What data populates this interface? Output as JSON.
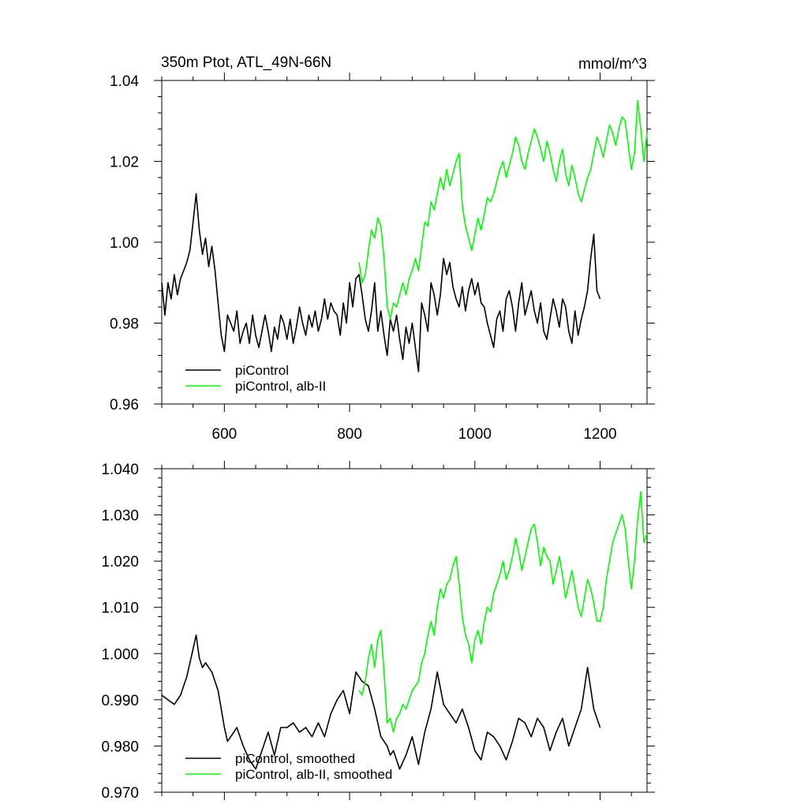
{
  "chart_data": [
    {
      "type": "line",
      "title": "350m Ptot, ATL_49N-66N",
      "units": "mmol/m^3",
      "xlim": [
        500,
        1275
      ],
      "ylim": [
        0.96,
        1.04
      ],
      "x_ticks": [
        600,
        800,
        1000,
        1200
      ],
      "x_tick_labels": [
        "600",
        "800",
        "1000",
        "1200"
      ],
      "y_ticks": [
        0.96,
        0.98,
        1.0,
        1.02,
        1.04
      ],
      "y_tick_labels": [
        "0.96",
        "0.98",
        "1.00",
        "1.02",
        "1.04"
      ],
      "legend_position": "bottom-left",
      "grid": false,
      "series": [
        {
          "name": "piControl",
          "color": "#000000",
          "x": [
            500,
            505,
            510,
            515,
            520,
            525,
            530,
            535,
            540,
            545,
            550,
            555,
            560,
            565,
            570,
            575,
            580,
            585,
            590,
            595,
            600,
            605,
            610,
            615,
            620,
            625,
            630,
            635,
            640,
            645,
            650,
            655,
            660,
            665,
            670,
            675,
            680,
            685,
            690,
            695,
            700,
            705,
            710,
            715,
            720,
            725,
            730,
            735,
            740,
            745,
            750,
            755,
            760,
            765,
            770,
            775,
            780,
            785,
            790,
            795,
            800,
            805,
            810,
            815,
            820,
            825,
            830,
            835,
            840,
            845,
            850,
            855,
            860,
            865,
            870,
            875,
            880,
            885,
            890,
            895,
            900,
            905,
            910,
            915,
            920,
            925,
            930,
            935,
            940,
            945,
            950,
            955,
            960,
            965,
            970,
            975,
            980,
            985,
            990,
            995,
            1000,
            1005,
            1010,
            1015,
            1020,
            1025,
            1030,
            1035,
            1040,
            1045,
            1050,
            1055,
            1060,
            1065,
            1070,
            1075,
            1080,
            1085,
            1090,
            1095,
            1100,
            1105,
            1110,
            1115,
            1120,
            1125,
            1130,
            1135,
            1140,
            1145,
            1150,
            1155,
            1160,
            1165,
            1170,
            1175,
            1180,
            1185,
            1190,
            1195,
            1200
          ],
          "y": [
            0.99,
            0.982,
            0.99,
            0.986,
            0.992,
            0.987,
            0.991,
            0.993,
            0.995,
            0.998,
            1.005,
            1.012,
            1.003,
            0.997,
            1.001,
            0.994,
            0.999,
            0.993,
            0.985,
            0.977,
            0.973,
            0.982,
            0.98,
            0.978,
            0.983,
            0.975,
            0.978,
            0.98,
            0.975,
            0.982,
            0.977,
            0.974,
            0.978,
            0.982,
            0.978,
            0.973,
            0.979,
            0.976,
            0.982,
            0.98,
            0.976,
            0.981,
            0.975,
            0.979,
            0.984,
            0.98,
            0.977,
            0.982,
            0.979,
            0.983,
            0.978,
            0.981,
            0.986,
            0.981,
            0.985,
            0.983,
            0.982,
            0.977,
            0.985,
            0.98,
            0.99,
            0.984,
            0.991,
            0.992,
            0.987,
            0.981,
            0.978,
            0.983,
            0.99,
            0.978,
            0.983,
            0.977,
            0.972,
            0.981,
            0.978,
            0.982,
            0.976,
            0.971,
            0.979,
            0.975,
            0.98,
            0.974,
            0.968,
            0.985,
            0.982,
            0.978,
            0.99,
            0.987,
            0.982,
            0.987,
            0.996,
            0.992,
            0.995,
            0.989,
            0.986,
            0.984,
            0.989,
            0.983,
            0.988,
            0.991,
            0.987,
            0.99,
            0.985,
            0.984,
            0.98,
            0.977,
            0.974,
            0.981,
            0.983,
            0.978,
            0.986,
            0.988,
            0.984,
            0.978,
            0.985,
            0.99,
            0.982,
            0.985,
            0.988,
            0.983,
            0.98,
            0.985,
            0.978,
            0.976,
            0.981,
            0.986,
            0.983,
            0.979,
            0.986,
            0.984,
            0.978,
            0.975,
            0.983,
            0.977,
            0.981,
            0.984,
            0.988,
            0.996,
            1.002,
            0.988,
            0.986
          ]
        },
        {
          "name": "piControl, alb-II",
          "color": "#00ff00",
          "x": [
            815,
            820,
            825,
            830,
            835,
            840,
            845,
            850,
            855,
            860,
            865,
            870,
            875,
            880,
            885,
            890,
            895,
            900,
            905,
            910,
            915,
            920,
            925,
            930,
            935,
            940,
            945,
            950,
            955,
            960,
            965,
            970,
            975,
            980,
            985,
            990,
            995,
            1000,
            1005,
            1010,
            1015,
            1020,
            1025,
            1030,
            1035,
            1040,
            1045,
            1050,
            1055,
            1060,
            1065,
            1070,
            1075,
            1080,
            1085,
            1090,
            1095,
            1100,
            1105,
            1110,
            1115,
            1120,
            1125,
            1130,
            1135,
            1140,
            1145,
            1150,
            1155,
            1160,
            1165,
            1170,
            1175,
            1180,
            1185,
            1190,
            1195,
            1200,
            1205,
            1210,
            1215,
            1220,
            1225,
            1230,
            1235,
            1240,
            1245,
            1250,
            1255,
            1260,
            1265,
            1270,
            1275
          ],
          "y": [
            0.995,
            0.99,
            0.992,
            0.998,
            1.003,
            1.001,
            1.006,
            1.004,
            0.996,
            0.984,
            0.981,
            0.985,
            0.984,
            0.987,
            0.99,
            0.987,
            0.991,
            0.993,
            0.996,
            0.993,
            0.999,
            1.005,
            1.004,
            1.01,
            1.008,
            1.012,
            1.016,
            1.013,
            1.018,
            1.014,
            1.017,
            1.02,
            1.022,
            1.009,
            1.004,
            1.001,
            0.998,
            1.002,
            1.006,
            1.003,
            1.007,
            1.011,
            1.01,
            1.012,
            1.015,
            1.018,
            1.02,
            1.016,
            1.019,
            1.022,
            1.026,
            1.024,
            1.02,
            1.018,
            1.022,
            1.025,
            1.028,
            1.026,
            1.023,
            1.02,
            1.025,
            1.022,
            1.018,
            1.015,
            1.02,
            1.023,
            1.017,
            1.014,
            1.019,
            1.016,
            1.012,
            1.01,
            1.013,
            1.016,
            1.018,
            1.022,
            1.026,
            1.024,
            1.021,
            1.025,
            1.029,
            1.027,
            1.024,
            1.028,
            1.031,
            1.03,
            1.024,
            1.018,
            1.022,
            1.035,
            1.028,
            1.02,
            1.027
          ]
        }
      ]
    },
    {
      "type": "line",
      "title": "",
      "units": "",
      "xlim": [
        500,
        1275
      ],
      "ylim": [
        0.97,
        1.04
      ],
      "x_ticks": [
        600,
        800,
        1000,
        1200
      ],
      "x_tick_labels": [],
      "y_ticks": [
        0.97,
        0.98,
        0.99,
        1.0,
        1.01,
        1.02,
        1.03,
        1.04
      ],
      "y_tick_labels": [
        "0.970",
        "0.980",
        "0.990",
        "1.000",
        "1.010",
        "1.020",
        "1.030",
        "1.040"
      ],
      "legend_position": "bottom-left",
      "grid": false,
      "series": [
        {
          "name": "piControl, smoothed",
          "color": "#000000",
          "x": [
            500,
            510,
            520,
            530,
            540,
            550,
            555,
            560,
            565,
            570,
            580,
            590,
            600,
            605,
            610,
            615,
            620,
            630,
            640,
            650,
            660,
            670,
            680,
            690,
            700,
            710,
            720,
            730,
            740,
            750,
            760,
            770,
            780,
            790,
            800,
            810,
            820,
            830,
            840,
            850,
            860,
            865,
            870,
            880,
            890,
            900,
            910,
            920,
            930,
            940,
            950,
            960,
            970,
            980,
            990,
            1000,
            1010,
            1020,
            1030,
            1040,
            1050,
            1060,
            1070,
            1080,
            1090,
            1100,
            1110,
            1120,
            1130,
            1140,
            1150,
            1160,
            1170,
            1180,
            1190,
            1200
          ],
          "y": [
            0.991,
            0.99,
            0.989,
            0.991,
            0.995,
            1.001,
            1.004,
            0.999,
            0.997,
            0.998,
            0.996,
            0.992,
            0.984,
            0.981,
            0.982,
            0.983,
            0.984,
            0.98,
            0.977,
            0.975,
            0.979,
            0.983,
            0.978,
            0.984,
            0.984,
            0.985,
            0.983,
            0.984,
            0.982,
            0.985,
            0.982,
            0.987,
            0.99,
            0.992,
            0.987,
            0.996,
            0.994,
            0.993,
            0.988,
            0.982,
            0.98,
            0.978,
            0.979,
            0.975,
            0.978,
            0.982,
            0.976,
            0.983,
            0.988,
            0.996,
            0.989,
            0.987,
            0.985,
            0.988,
            0.984,
            0.979,
            0.977,
            0.983,
            0.982,
            0.98,
            0.977,
            0.981,
            0.986,
            0.985,
            0.982,
            0.986,
            0.984,
            0.979,
            0.983,
            0.986,
            0.98,
            0.984,
            0.988,
            0.997,
            0.988,
            0.984
          ]
        },
        {
          "name": "piControl, alb-II, smoothed",
          "color": "#00ff00",
          "x": [
            815,
            820,
            825,
            830,
            835,
            840,
            845,
            850,
            855,
            860,
            865,
            870,
            875,
            880,
            885,
            890,
            895,
            900,
            905,
            910,
            915,
            920,
            925,
            930,
            935,
            940,
            945,
            950,
            955,
            960,
            965,
            970,
            975,
            980,
            985,
            990,
            995,
            1000,
            1005,
            1010,
            1015,
            1020,
            1025,
            1030,
            1035,
            1040,
            1045,
            1050,
            1055,
            1060,
            1065,
            1070,
            1075,
            1080,
            1085,
            1090,
            1095,
            1100,
            1105,
            1110,
            1115,
            1120,
            1125,
            1130,
            1135,
            1140,
            1145,
            1150,
            1155,
            1160,
            1165,
            1170,
            1175,
            1180,
            1185,
            1190,
            1195,
            1200,
            1205,
            1210,
            1215,
            1220,
            1225,
            1230,
            1235,
            1240,
            1245,
            1250,
            1255,
            1260,
            1265,
            1270,
            1275
          ],
          "y": [
            0.992,
            0.991,
            0.994,
            0.999,
            1.002,
            0.997,
            1.003,
            1.005,
            0.996,
            0.985,
            0.986,
            0.983,
            0.986,
            0.987,
            0.989,
            0.988,
            0.99,
            0.992,
            0.993,
            0.994,
            0.998,
            1.0,
            1.004,
            1.007,
            1.004,
            1.01,
            1.014,
            1.012,
            1.015,
            1.016,
            1.019,
            1.021,
            1.015,
            1.008,
            1.004,
            1.002,
            0.998,
            1.003,
            1.005,
            1.002,
            1.007,
            1.01,
            1.009,
            1.013,
            1.015,
            1.017,
            1.02,
            1.016,
            1.018,
            1.021,
            1.025,
            1.022,
            1.018,
            1.021,
            1.024,
            1.027,
            1.028,
            1.024,
            1.019,
            1.023,
            1.021,
            1.02,
            1.015,
            1.018,
            1.021,
            1.017,
            1.012,
            1.015,
            1.018,
            1.014,
            1.01,
            1.008,
            1.012,
            1.016,
            1.014,
            1.011,
            1.007,
            1.007,
            1.01,
            1.016,
            1.02,
            1.024,
            1.026,
            1.028,
            1.03,
            1.027,
            1.02,
            1.014,
            1.02,
            1.029,
            1.035,
            1.024,
            1.026
          ]
        }
      ]
    }
  ]
}
